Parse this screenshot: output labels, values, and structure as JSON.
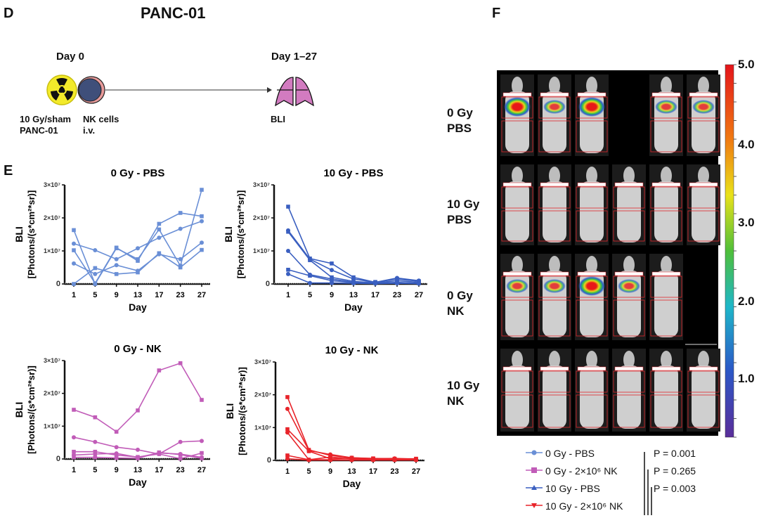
{
  "panel_d": {
    "letter": "D",
    "title": "PANC-01",
    "day0": "Day 0",
    "day_end": "Day 1–27",
    "label_irradiation": [
      "10 Gy/sham",
      "PANC-01"
    ],
    "label_nk": [
      "NK cells",
      "i.v."
    ],
    "label_bli": "BLI",
    "icons": [
      "radiation-icon",
      "nk-cell-icon",
      "arrow-icon",
      "lungs-icon"
    ]
  },
  "panel_e": {
    "letter": "E"
  },
  "panel_f": {
    "letter": "F",
    "rows": [
      {
        "label": [
          "0 Gy",
          "PBS"
        ],
        "mice": [
          1,
          1,
          1,
          0,
          1,
          1
        ]
      },
      {
        "label": [
          "10 Gy",
          "PBS"
        ],
        "mice": [
          1,
          1,
          1,
          1,
          1,
          1
        ]
      },
      {
        "label": [
          "0 Gy",
          "NK"
        ],
        "mice": [
          1,
          1,
          1,
          1,
          1,
          0
        ]
      },
      {
        "label": [
          "10 Gy",
          "NK"
        ],
        "mice": [
          1,
          1,
          1,
          1,
          1,
          1
        ]
      }
    ],
    "colorbar": {
      "labels": [
        "5.0",
        "4.0",
        "3.0",
        "2.0",
        "1.0"
      ]
    },
    "legend": [
      {
        "label": "0 Gy - PBS",
        "color": "#6a8fd6",
        "marker": "circle"
      },
      {
        "label": "0 Gy - 2×10⁶ NK",
        "color": "#c15cb8",
        "marker": "square"
      },
      {
        "label": "10 Gy - PBS",
        "color": "#3a5fc0",
        "marker": "triangle-up"
      },
      {
        "label": "10 Gy - 2×10⁶ NK",
        "color": "#e8242a",
        "marker": "triangle-down"
      }
    ],
    "p_values": [
      "P = 0.001",
      "P = 0.265",
      "P = 0.003"
    ]
  },
  "chart_data": [
    {
      "type": "line",
      "title": "0 Gy - PBS",
      "xlabel": "Day",
      "ylabel": [
        "BLI",
        "[Photons/(s*cm²*sr)]"
      ],
      "x": [
        1,
        5,
        9,
        13,
        17,
        23,
        27
      ],
      "x_ticks": [
        "1",
        "5",
        "9",
        "13",
        "17",
        "23",
        "27"
      ],
      "y_ticks": [
        "0",
        "1×10⁷",
        "2×10⁷",
        "3×10⁷"
      ],
      "ylim": [
        0,
        30000000
      ],
      "color": "#6a8fd6",
      "unit": 10000000,
      "series": [
        {
          "name": "mouse 1",
          "values": [
            1.63,
            0.0,
            1.08,
            0.75,
            1.65,
            0.55,
            2.85
          ]
        },
        {
          "name": "mouse 2",
          "values": [
            1.22,
            1.02,
            0.75,
            1.08,
            1.4,
            1.67,
            1.9
          ]
        },
        {
          "name": "mouse 3",
          "values": [
            1.02,
            0.02,
            1.1,
            0.7,
            1.82,
            2.15,
            2.05
          ]
        },
        {
          "name": "mouse 4",
          "values": [
            0.62,
            0.3,
            0.57,
            0.4,
            0.9,
            0.75,
            1.25
          ]
        },
        {
          "name": "mouse 5",
          "values": [
            0.0,
            0.48,
            0.3,
            0.35,
            0.93,
            0.5,
            1.03
          ]
        }
      ]
    },
    {
      "type": "line",
      "title": "10 Gy - PBS",
      "xlabel": "Day",
      "ylabel": [
        "BLI",
        "[Photons/(s*cm²*sr)]"
      ],
      "x": [
        1,
        5,
        9,
        13,
        17,
        23,
        27
      ],
      "x_ticks": [
        "1",
        "5",
        "9",
        "13",
        "17",
        "23",
        "27"
      ],
      "y_ticks": [
        "0",
        "1×10⁷",
        "2×10⁷",
        "3×10⁷"
      ],
      "ylim": [
        0,
        30000000
      ],
      "color": "#3a5fc0",
      "unit": 10000000,
      "series": [
        {
          "name": "mouse 1",
          "values": [
            2.34,
            0.77,
            0.62,
            0.2,
            0.05,
            0.15,
            0.08
          ]
        },
        {
          "name": "mouse 2",
          "values": [
            1.62,
            0.75,
            0.42,
            0.15,
            0.05,
            0.18,
            0.1
          ]
        },
        {
          "name": "mouse 3",
          "values": [
            1.58,
            0.72,
            0.2,
            0.08,
            0.03,
            0.1,
            0.05
          ]
        },
        {
          "name": "mouse 4",
          "values": [
            1.0,
            0.28,
            0.15,
            0.05,
            0.02,
            0.05,
            0.02
          ]
        },
        {
          "name": "mouse 5",
          "values": [
            0.43,
            0.25,
            0.1,
            0.04,
            0.06,
            0.03,
            0.02
          ]
        },
        {
          "name": "mouse 6",
          "values": [
            0.3,
            0.03,
            0.03,
            0.02,
            0.01,
            0.02,
            0.01
          ]
        }
      ]
    },
    {
      "type": "line",
      "title": "0 Gy - NK",
      "xlabel": "Day",
      "ylabel": [
        "BLI",
        "[Photons/(s*cm²*sr)]"
      ],
      "x": [
        1,
        5,
        9,
        13,
        17,
        23,
        27
      ],
      "x_ticks": [
        "1",
        "5",
        "9",
        "13",
        "17",
        "23",
        "27"
      ],
      "y_ticks": [
        "0",
        "1×10⁷",
        "2×10⁷",
        "3×10⁷"
      ],
      "ylim": [
        0,
        30000000
      ],
      "color": "#c15cb8",
      "unit": 10000000,
      "series": [
        {
          "name": "mouse 1",
          "values": [
            1.5,
            1.27,
            0.83,
            1.48,
            2.7,
            2.92,
            1.8
          ]
        },
        {
          "name": "mouse 2",
          "values": [
            0.66,
            0.52,
            0.36,
            0.28,
            0.15,
            0.52,
            0.55
          ]
        },
        {
          "name": "mouse 3",
          "values": [
            0.22,
            0.22,
            0.12,
            0.06,
            0.15,
            0.01,
            0.18
          ]
        },
        {
          "name": "mouse 4",
          "values": [
            0.12,
            0.15,
            0.17,
            0.05,
            0.18,
            0.15,
            0.05
          ]
        },
        {
          "name": "mouse 5",
          "values": [
            0.05,
            0.05,
            0.03,
            0.02,
            0.2,
            0.13,
            0.02
          ]
        }
      ]
    },
    {
      "type": "line",
      "title": "10 Gy - NK",
      "xlabel": "Day",
      "ylabel": [
        "BLI",
        "[Photons/(s*cm²*sr)]"
      ],
      "x": [
        1,
        5,
        9,
        13,
        17,
        23,
        27
      ],
      "x_ticks": [
        "1",
        "5",
        "9",
        "13",
        "17",
        "23",
        "27"
      ],
      "y_ticks": [
        "0",
        "1×10⁷",
        "2×10⁷",
        "3×10⁷"
      ],
      "ylim": [
        0,
        30000000
      ],
      "color": "#e8242a",
      "unit": 10000000,
      "series": [
        {
          "name": "mouse 1",
          "values": [
            1.93,
            0.32,
            0.15,
            0.08,
            0.06,
            0.05,
            0.05
          ]
        },
        {
          "name": "mouse 2",
          "values": [
            1.57,
            0.3,
            0.18,
            0.08,
            0.05,
            0.06,
            0.04
          ]
        },
        {
          "name": "mouse 3",
          "values": [
            0.95,
            0.28,
            0.05,
            0.07,
            0.05,
            0.04,
            0.03
          ]
        },
        {
          "name": "mouse 4",
          "values": [
            0.85,
            0.02,
            0.1,
            0.05,
            0.03,
            0.03,
            0.02
          ]
        },
        {
          "name": "mouse 5",
          "values": [
            0.15,
            0.02,
            0.02,
            0.02,
            0.02,
            0.02,
            0.02
          ]
        },
        {
          "name": "mouse 6",
          "values": [
            0.05,
            0.01,
            0.01,
            0.01,
            0.01,
            0.01,
            0.01
          ]
        }
      ]
    }
  ]
}
